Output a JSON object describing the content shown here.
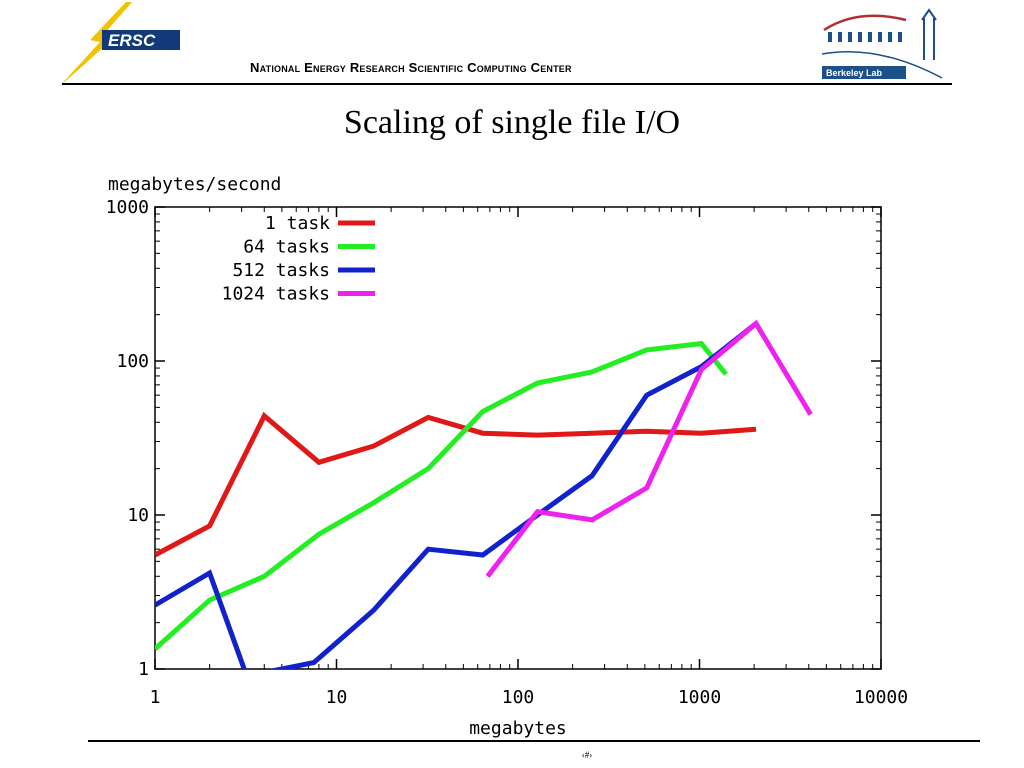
{
  "header": {
    "logo_left_text": "ERSC",
    "lab_name": "National Energy Research Scientific Computing Center",
    "logo_right_text": "Berkeley Lab"
  },
  "slide": {
    "title": "Scaling of single file I/O",
    "page_number": "‹#›"
  },
  "colors": {
    "nersc_yellow": "#f2c200",
    "nersc_blue": "#123a7a",
    "berkeley_blue": "#1d4f8a",
    "berkeley_red": "#b03030"
  },
  "chart_data": {
    "type": "line",
    "title": "",
    "xlabel": "megabytes",
    "ylabel": "megabytes/second",
    "xscale": "log",
    "yscale": "log",
    "xlim": [
      1,
      10000
    ],
    "ylim": [
      1,
      1000
    ],
    "x_ticks": [
      1,
      10,
      100,
      1000,
      10000
    ],
    "x_tick_labels": [
      "1",
      "10",
      "100",
      "1000",
      "10000"
    ],
    "y_ticks": [
      1,
      10,
      100,
      1000
    ],
    "y_tick_labels": [
      "1",
      "10",
      "100",
      "1000"
    ],
    "legend_position": "top-left",
    "grid": false,
    "series": [
      {
        "name": "1 task",
        "color": "#e01818",
        "x": [
          1,
          2,
          4,
          8,
          16,
          32,
          64,
          128,
          256,
          512,
          1024,
          2048
        ],
        "y": [
          5.5,
          8.5,
          44,
          22,
          28,
          43,
          34,
          33,
          34,
          35,
          34,
          36
        ]
      },
      {
        "name": "64 tasks",
        "color": "#22ee22",
        "x": [
          1,
          2,
          4,
          8,
          16,
          32,
          64,
          128,
          256,
          512,
          1024,
          1400
        ],
        "y": [
          1.35,
          2.8,
          4,
          7.5,
          12,
          20,
          47,
          72,
          85,
          118,
          130,
          82
        ]
      },
      {
        "name": "512 tasks",
        "color": "#1122cc",
        "x": [
          1,
          2,
          3.2,
          7.5,
          16,
          32,
          64,
          128,
          256,
          512,
          1024,
          2048
        ],
        "y": [
          2.6,
          4.2,
          0.9,
          1.1,
          2.4,
          6,
          5.5,
          10,
          18,
          60,
          92,
          175
        ]
      },
      {
        "name": "1024 tasks",
        "color": "#ee22ee",
        "x": [
          68,
          128,
          256,
          512,
          1024,
          2048,
          4096
        ],
        "y": [
          4,
          10.5,
          9.3,
          15,
          88,
          175,
          45
        ]
      }
    ]
  }
}
